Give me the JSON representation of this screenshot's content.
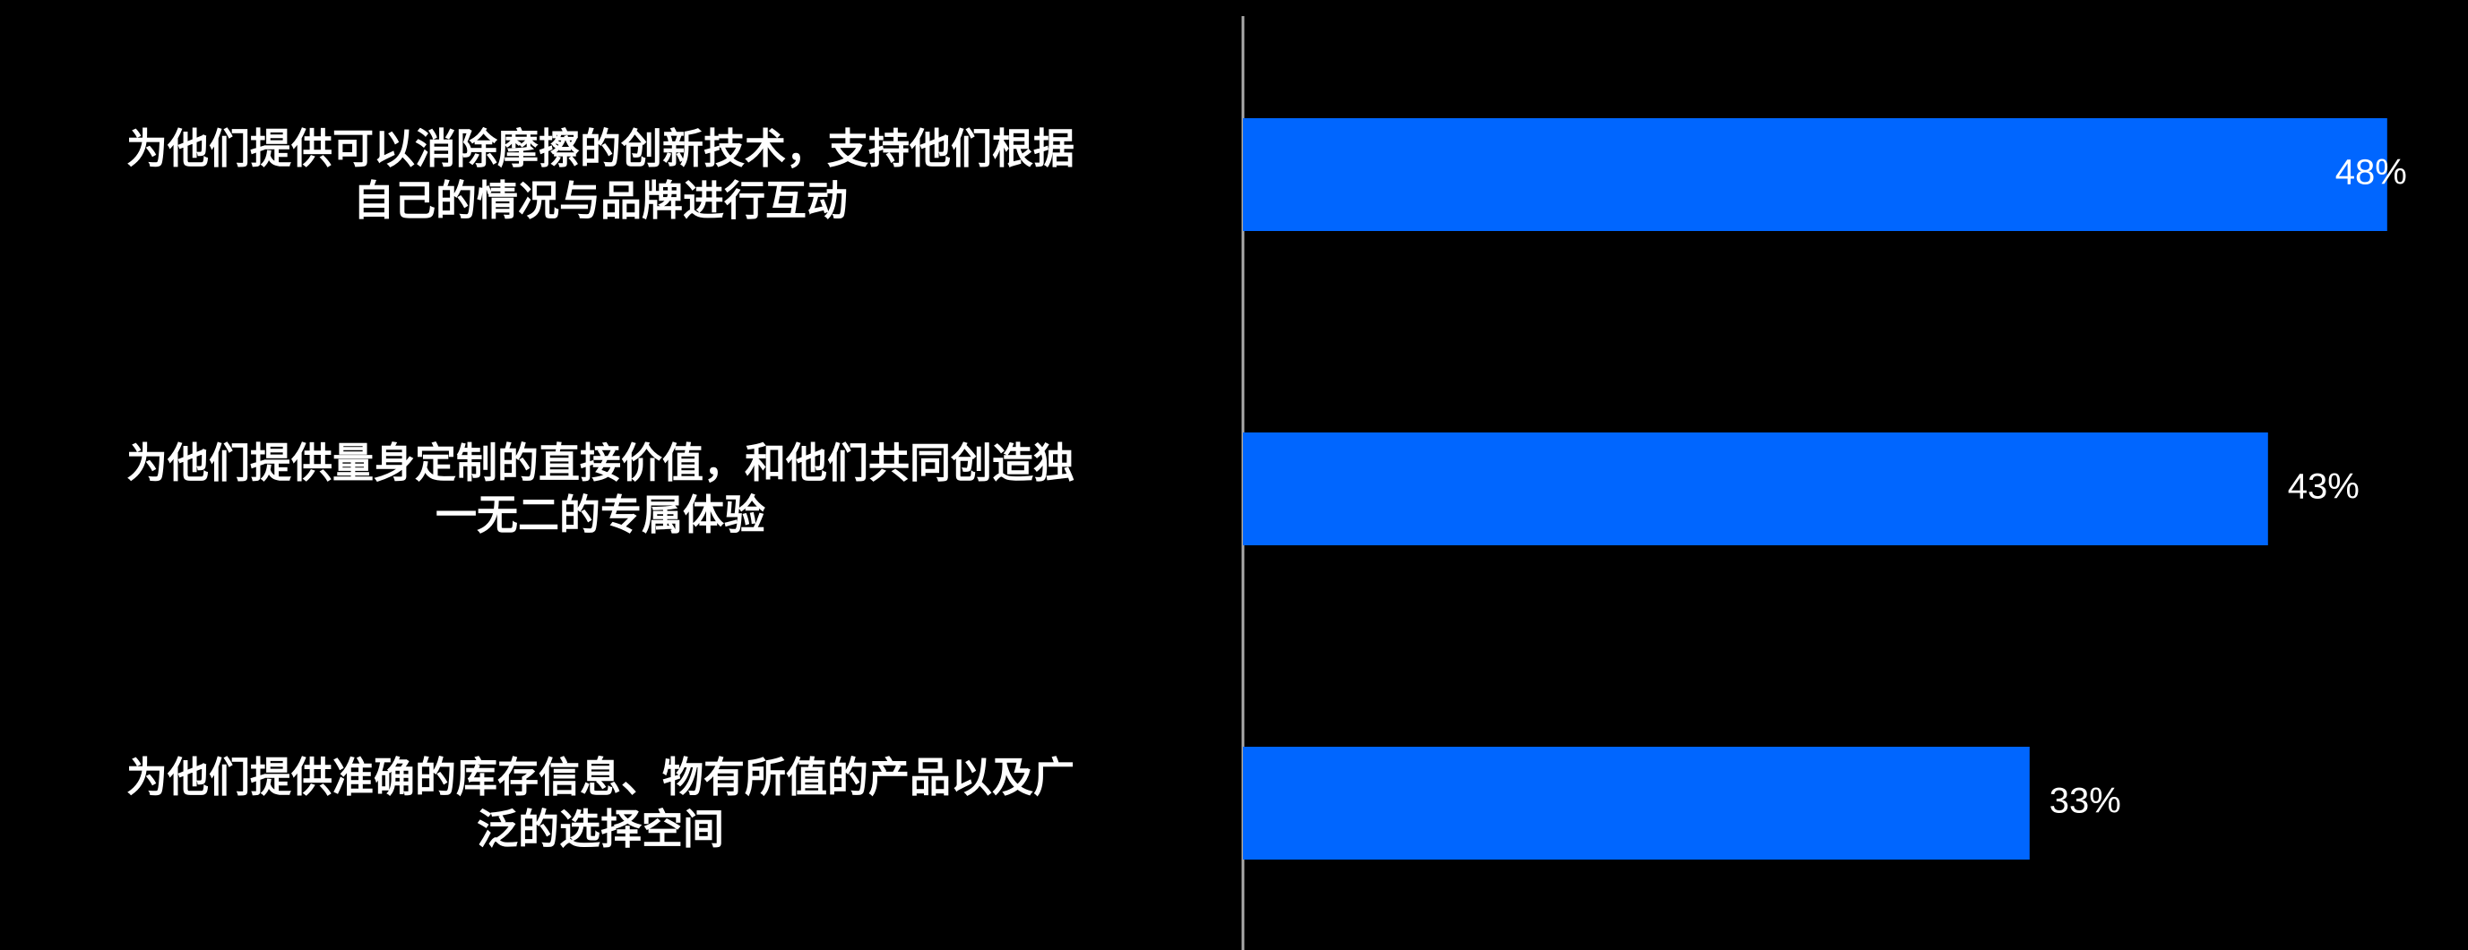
{
  "chart_data": {
    "type": "bar",
    "orientation": "horizontal",
    "categories": [
      [
        "为他们提供可以消除摩擦的创新技术，支持他们根据",
        "自己的情况与品牌进行互动"
      ],
      [
        "为他们提供量身定制的直接价值，和他们共同创造独",
        "一无二的专属体验"
      ],
      [
        "为他们提供准确的库存信息、物有所值的产品以及广",
        "泛的选择空间"
      ]
    ],
    "values": [
      48,
      43,
      33
    ],
    "value_labels": [
      "48%",
      "43%",
      "33%"
    ],
    "xlim": [
      0,
      50
    ],
    "grid": false,
    "legend": "none"
  },
  "colors": {
    "background": "#000000",
    "bar": "#0066ff",
    "text": "#ffffff",
    "axis": "#aaaaaa"
  }
}
